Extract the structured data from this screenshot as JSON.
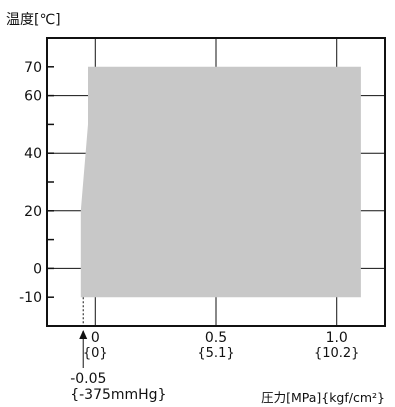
{
  "chart_data": {
    "type": "area",
    "ylabel": "温度[℃]",
    "xlabel": "圧力[MPa]{kgf/cm²}",
    "xlim": [
      -0.2,
      1.2
    ],
    "ylim": [
      -20,
      80
    ],
    "grid": true,
    "x_ticks": [
      {
        "value": 0,
        "label": "0",
        "sublabel": "{0}"
      },
      {
        "value": 0.5,
        "label": "0.5",
        "sublabel": "{5.1}"
      },
      {
        "value": 1.0,
        "label": "1.0",
        "sublabel": "{10.2}"
      }
    ],
    "y_ticks": [
      {
        "value": 70,
        "label": "70"
      },
      {
        "value": 60,
        "label": "60"
      },
      {
        "value": 40,
        "label": "40"
      },
      {
        "value": 20,
        "label": "20"
      },
      {
        "value": 0,
        "label": "0"
      },
      {
        "value": -10,
        "label": "-10"
      }
    ],
    "minor_y_ticks": [
      50,
      30,
      10
    ],
    "grid_x": [
      0,
      0.5,
      1.0
    ],
    "grid_y": [
      60,
      40,
      20,
      0
    ],
    "region": {
      "x": [
        -0.06,
        -0.06,
        -0.03,
        -0.03,
        1.1,
        1.1
      ],
      "y": [
        -10,
        20,
        50,
        70,
        70,
        -10
      ]
    },
    "annotation": {
      "x": -0.05,
      "label": "-0.05",
      "sublabel": "{-375mmHg}"
    }
  },
  "colors": {
    "region_fill": "#c8c8c8",
    "axis": "#111111",
    "grid": "#111111"
  }
}
